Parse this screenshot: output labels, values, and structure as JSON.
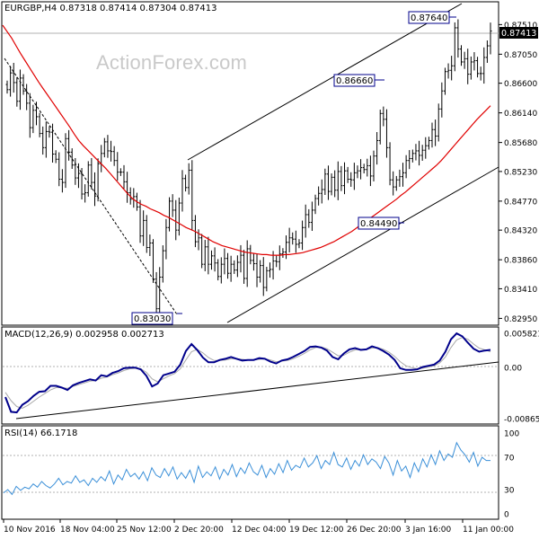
{
  "header": {
    "symbol": "EURGBP,H4",
    "ohlc": "0.87318 0.87414 0.87304 0.87413"
  },
  "watermark": "ActionForex.com",
  "colors": {
    "candle": "#000000",
    "sma": "#e00000",
    "macd_line": "#00008b",
    "signal_line": "#a9a9a9",
    "rsi_line": "#3a8fd8",
    "level_line": "#b0b0b0",
    "trend_line": "#000000",
    "frame": "#000000"
  },
  "chart_data": [
    {
      "type": "line",
      "panel": "price",
      "title": "EURGBP,H4",
      "y_tick_labels": [
        "0.87510",
        "0.87050",
        "0.86600",
        "0.86140",
        "0.85680",
        "0.85230",
        "0.84770",
        "0.84320",
        "0.83860",
        "0.83410",
        "0.82950"
      ],
      "ylim": [
        0.829,
        0.8778
      ],
      "current_price": 0.87413,
      "current_price_label": "0.87413",
      "annotations": [
        {
          "label": "0.83030",
          "value": 0.8303
        },
        {
          "label": "0.86660",
          "value": 0.8666
        },
        {
          "label": "0.84490",
          "value": 0.8449
        },
        {
          "label": "0.87640",
          "value": 0.8764
        }
      ],
      "series": [
        {
          "values": [
            0.865,
            0.8676,
            0.8661,
            0.8632,
            0.8668,
            0.8648,
            0.8629,
            0.8591,
            0.8618,
            0.8608,
            0.8582,
            0.856,
            0.8585,
            0.8584,
            0.855,
            0.8542,
            0.8511,
            0.8506,
            0.8574,
            0.8553,
            0.8533,
            0.8513,
            0.852,
            0.8488,
            0.849,
            0.8533,
            0.8506,
            0.8485,
            0.8535,
            0.8551,
            0.8569,
            0.8555,
            0.8554,
            0.854,
            0.8522,
            0.8522,
            0.8507,
            0.849,
            0.848,
            0.8484,
            0.8468,
            0.8423,
            0.8447,
            0.8405,
            0.8412,
            0.8356,
            0.831,
            0.8359,
            0.84,
            0.8436,
            0.8477,
            0.8463,
            0.8432,
            0.8474,
            0.8512,
            0.8498,
            0.8525,
            0.8447,
            0.8414,
            0.842,
            0.8379,
            0.8406,
            0.8379,
            0.8392,
            0.8381,
            0.836,
            0.8379,
            0.8388,
            0.8365,
            0.8379,
            0.837,
            0.8382,
            0.8393,
            0.8357,
            0.8403,
            0.8385,
            0.838,
            0.8359,
            0.8377,
            0.8343,
            0.8369,
            0.8371,
            0.8384,
            0.8383,
            0.8395,
            0.8398,
            0.8413,
            0.842,
            0.8418,
            0.841,
            0.8412,
            0.8436,
            0.8456,
            0.8444,
            0.8463,
            0.8481,
            0.8489,
            0.8495,
            0.8519,
            0.8492,
            0.8514,
            0.8494,
            0.8523,
            0.8501,
            0.8524,
            0.8511,
            0.851,
            0.8521,
            0.8524,
            0.8529,
            0.8526,
            0.8532,
            0.8516,
            0.8547,
            0.8571,
            0.8613,
            0.8604,
            0.856,
            0.851,
            0.8499,
            0.851,
            0.8515,
            0.8521,
            0.854,
            0.8543,
            0.8551,
            0.8555,
            0.8548,
            0.8556,
            0.8563,
            0.8571,
            0.8588,
            0.8578,
            0.862,
            0.8648,
            0.8678,
            0.868,
            0.8687,
            0.8746,
            0.8713,
            0.8693,
            0.8698,
            0.8674,
            0.8693,
            0.8695,
            0.8675,
            0.8675,
            0.87,
            0.8718,
            0.8741
          ],
          "color": "#000000"
        },
        {
          "values": [
            0.875,
            0.874,
            0.873,
            0.8718,
            0.8706,
            0.8695,
            0.8684,
            0.8673,
            0.8662,
            0.8652,
            0.8642,
            0.8632,
            0.8622,
            0.8612,
            0.8602,
            0.8592,
            0.8581,
            0.8571,
            0.8563,
            0.8556,
            0.8549,
            0.8542,
            0.8535,
            0.8528,
            0.852,
            0.8512,
            0.8504,
            0.8496,
            0.8488,
            0.8481,
            0.8476,
            0.8472,
            0.8469,
            0.8465,
            0.8462,
            0.8459,
            0.8455,
            0.8452,
            0.8448,
            0.8444,
            0.844,
            0.8436,
            0.8433,
            0.843,
            0.8426,
            0.8422,
            0.8418,
            0.8414,
            0.8411,
            0.8408,
            0.8406,
            0.8404,
            0.8402,
            0.84,
            0.8398,
            0.8397,
            0.8396,
            0.8395,
            0.8394,
            0.8394,
            0.8393,
            0.8393,
            0.8393,
            0.8394,
            0.8394,
            0.8395,
            0.8396,
            0.8397,
            0.8399,
            0.8401,
            0.8403,
            0.8405,
            0.8408,
            0.8411,
            0.8414,
            0.8418,
            0.8422,
            0.8426,
            0.843,
            0.8435,
            0.844,
            0.8445,
            0.845,
            0.8455,
            0.846,
            0.8465,
            0.847,
            0.8475,
            0.848,
            0.8486,
            0.8491,
            0.8497,
            0.8503,
            0.8509,
            0.8515,
            0.8521,
            0.8527,
            0.8533,
            0.854,
            0.8548,
            0.8556,
            0.8564,
            0.8572,
            0.858,
            0.8588,
            0.8596,
            0.8604,
            0.8611,
            0.8618,
            0.8625
          ],
          "color": "#e00000"
        }
      ]
    },
    {
      "type": "line",
      "panel": "macd",
      "title": "MACD(12,26,9) 0.002958 0.002713",
      "y_tick_labels": [
        "0.005821",
        "0.00",
        "-0.008654"
      ],
      "ylim": [
        -0.008654,
        0.005821
      ],
      "series": [
        {
          "values": [
            -0.005,
            -0.0075,
            -0.0076,
            -0.0063,
            -0.0057,
            -0.0048,
            -0.0041,
            -0.004,
            -0.0031,
            -0.0031,
            -0.0034,
            -0.0038,
            -0.003,
            -0.0026,
            -0.0023,
            -0.002,
            -0.0022,
            -0.0013,
            -0.0015,
            -0.0009,
            -0.0006,
            -0.0001,
            0.0,
            0.0,
            -0.0003,
            -0.0014,
            -0.0032,
            -0.0027,
            -0.0013,
            -0.001,
            -0.0007,
            0.0005,
            0.0028,
            0.004,
            0.003,
            0.0017,
            0.0009,
            0.0009,
            0.0013,
            0.0015,
            0.0018,
            0.0015,
            0.0012,
            0.0013,
            0.0013,
            0.0016,
            0.0015,
            0.001,
            0.0007,
            0.0012,
            0.0014,
            0.0018,
            0.0023,
            0.0028,
            0.0035,
            0.0036,
            0.0034,
            0.0029,
            0.0018,
            0.0014,
            0.0024,
            0.0031,
            0.0033,
            0.003,
            0.0031,
            0.0036,
            0.0033,
            0.0028,
            0.0022,
            0.0013,
            -0.0001,
            -0.0004,
            -0.0004,
            -0.0003,
            0.0001,
            0.0003,
            0.0005,
            0.0012,
            0.0027,
            0.0048,
            0.0058,
            0.0053,
            0.0042,
            0.0032,
            0.0027,
            0.0029,
            0.003
          ],
          "color": "#00008b"
        },
        {
          "values": [
            -0.0042,
            -0.0056,
            -0.0066,
            -0.0069,
            -0.0064,
            -0.0057,
            -0.005,
            -0.0044,
            -0.0038,
            -0.0034,
            -0.0034,
            -0.0035,
            -0.0032,
            -0.0029,
            -0.0026,
            -0.0023,
            -0.0022,
            -0.0018,
            -0.0016,
            -0.0012,
            -0.0009,
            -0.0005,
            -0.0002,
            -0.0001,
            -0.0002,
            -0.0008,
            -0.0019,
            -0.0024,
            -0.0019,
            -0.0014,
            -0.001,
            -0.0002,
            0.0013,
            0.0027,
            0.0031,
            0.0025,
            0.0017,
            0.0012,
            0.0012,
            0.0013,
            0.0015,
            0.0015,
            0.0014,
            0.0013,
            0.0013,
            0.0014,
            0.0015,
            0.0013,
            0.001,
            0.0011,
            0.0012,
            0.0015,
            0.0019,
            0.0024,
            0.003,
            0.0034,
            0.0035,
            0.0032,
            0.0026,
            0.002,
            0.0021,
            0.0026,
            0.003,
            0.0031,
            0.0031,
            0.0033,
            0.0034,
            0.0031,
            0.0026,
            0.0019,
            0.001,
            0.0003,
            0.0,
            -0.0002,
            -0.0001,
            0.0001,
            0.0003,
            0.0008,
            0.0018,
            0.0034,
            0.0047,
            0.0051,
            0.0048,
            0.004,
            0.0033,
            0.003,
            0.0027
          ],
          "color": "#a9a9a9"
        }
      ]
    },
    {
      "type": "line",
      "panel": "rsi",
      "title": "RSI(14) 66.1718",
      "y_tick_labels": [
        "100",
        "70",
        "30",
        "0"
      ],
      "ylim": [
        0,
        100
      ],
      "series": [
        {
          "values": [
            26,
            30,
            24,
            34,
            29,
            33,
            31,
            37,
            33,
            40,
            35,
            32,
            37,
            44,
            36,
            40,
            38,
            47,
            39,
            42,
            35,
            44,
            39,
            46,
            41,
            53,
            37,
            48,
            42,
            55,
            46,
            50,
            43,
            52,
            41,
            57,
            48,
            45,
            56,
            47,
            58,
            43,
            51,
            44,
            54,
            39,
            59,
            45,
            52,
            47,
            58,
            43,
            55,
            48,
            61,
            46,
            57,
            50,
            63,
            52,
            48,
            60,
            45,
            56,
            49,
            62,
            51,
            66,
            54,
            60,
            57,
            69,
            58,
            63,
            72,
            56,
            66,
            61,
            76,
            61,
            58,
            69,
            55,
            66,
            59,
            73,
            61,
            68,
            64,
            56,
            71,
            63,
            48,
            66,
            53,
            59,
            45,
            63,
            52,
            68,
            58,
            73,
            61,
            78,
            66,
            74,
            70,
            88,
            79,
            73,
            64,
            76,
            59,
            70,
            66,
            66
          ],
          "color": "#3a8fd8"
        }
      ]
    }
  ],
  "date_labels": [
    "10 Nov 2016",
    "18 Nov 04:00",
    "25 Nov 12:00",
    "2 Dec 20:00",
    "12 Dec 04:00",
    "19 Dec 12:00",
    "26 Dec 20:00",
    "3 Jan 16:00",
    "11 Jan 00:00"
  ]
}
